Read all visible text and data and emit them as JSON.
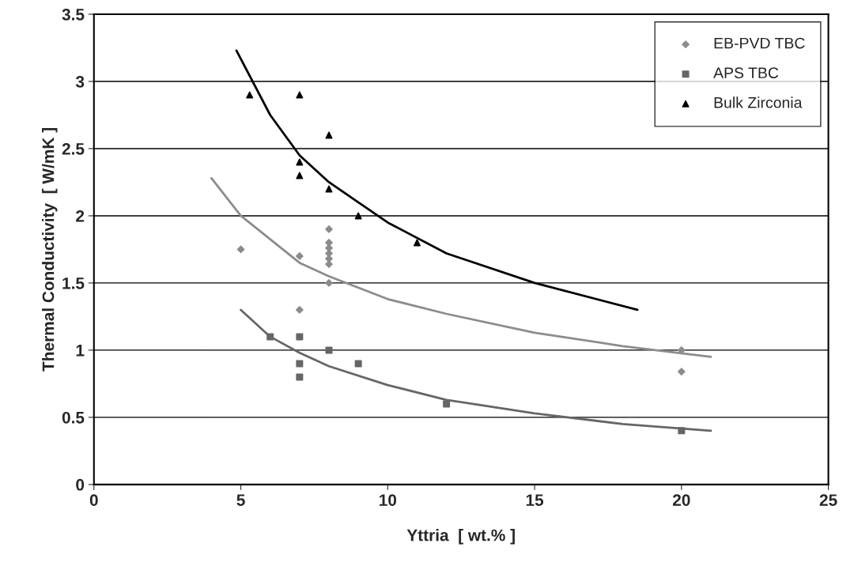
{
  "chart_data": {
    "type": "scatter",
    "xlabel": "Yttria  [ wt.% ]",
    "ylabel": "Thermal Conductivity  [ W/mK ]",
    "xlim": [
      0,
      25
    ],
    "ylim": [
      0,
      3.5
    ],
    "xticks": [
      0,
      5,
      10,
      15,
      20,
      25
    ],
    "yticks": [
      0,
      0.5,
      1,
      1.5,
      2,
      2.5,
      3,
      3.5
    ],
    "grid": "y",
    "legend": "top right",
    "series": [
      {
        "name": "EB-PVD TBC",
        "color": "#8c8c8c",
        "marker": "diamond",
        "x": [
          5,
          7,
          7,
          8,
          8,
          8,
          8,
          8,
          8,
          8,
          20,
          20
        ],
        "values": [
          1.75,
          1.7,
          1.3,
          1.9,
          1.8,
          1.76,
          1.72,
          1.68,
          1.64,
          1.5,
          1.0,
          0.84
        ]
      },
      {
        "name": "APS TBC",
        "color": "#666666",
        "marker": "square",
        "x": [
          6,
          7,
          7,
          7,
          8,
          9,
          12,
          20
        ],
        "values": [
          1.1,
          1.1,
          0.9,
          0.8,
          1.0,
          0.9,
          0.6,
          0.4
        ]
      },
      {
        "name": "Bulk Zirconia",
        "color": "#000000",
        "marker": "triangle",
        "x": [
          5.3,
          7,
          7,
          7,
          8,
          8,
          9,
          11
        ],
        "values": [
          2.9,
          2.9,
          2.4,
          2.3,
          2.6,
          2.2,
          2.0,
          1.8
        ]
      },
      {
        "type": "line",
        "color": "#8c8c8c",
        "x": [
          4,
          5,
          7,
          8,
          10,
          12,
          15,
          18,
          21
        ],
        "values": [
          2.28,
          2.0,
          1.65,
          1.55,
          1.38,
          1.27,
          1.13,
          1.03,
          0.95
        ]
      },
      {
        "type": "line",
        "color": "#666666",
        "x": [
          5,
          6,
          7,
          8,
          10,
          12,
          15,
          18,
          21
        ],
        "values": [
          1.3,
          1.1,
          0.98,
          0.88,
          0.74,
          0.63,
          0.53,
          0.45,
          0.4
        ]
      },
      {
        "type": "line",
        "color": "#000000",
        "x": [
          4.85,
          6,
          7,
          8,
          10,
          12,
          15,
          18.5
        ],
        "values": [
          3.23,
          2.75,
          2.45,
          2.25,
          1.95,
          1.72,
          1.5,
          1.3
        ]
      }
    ]
  }
}
